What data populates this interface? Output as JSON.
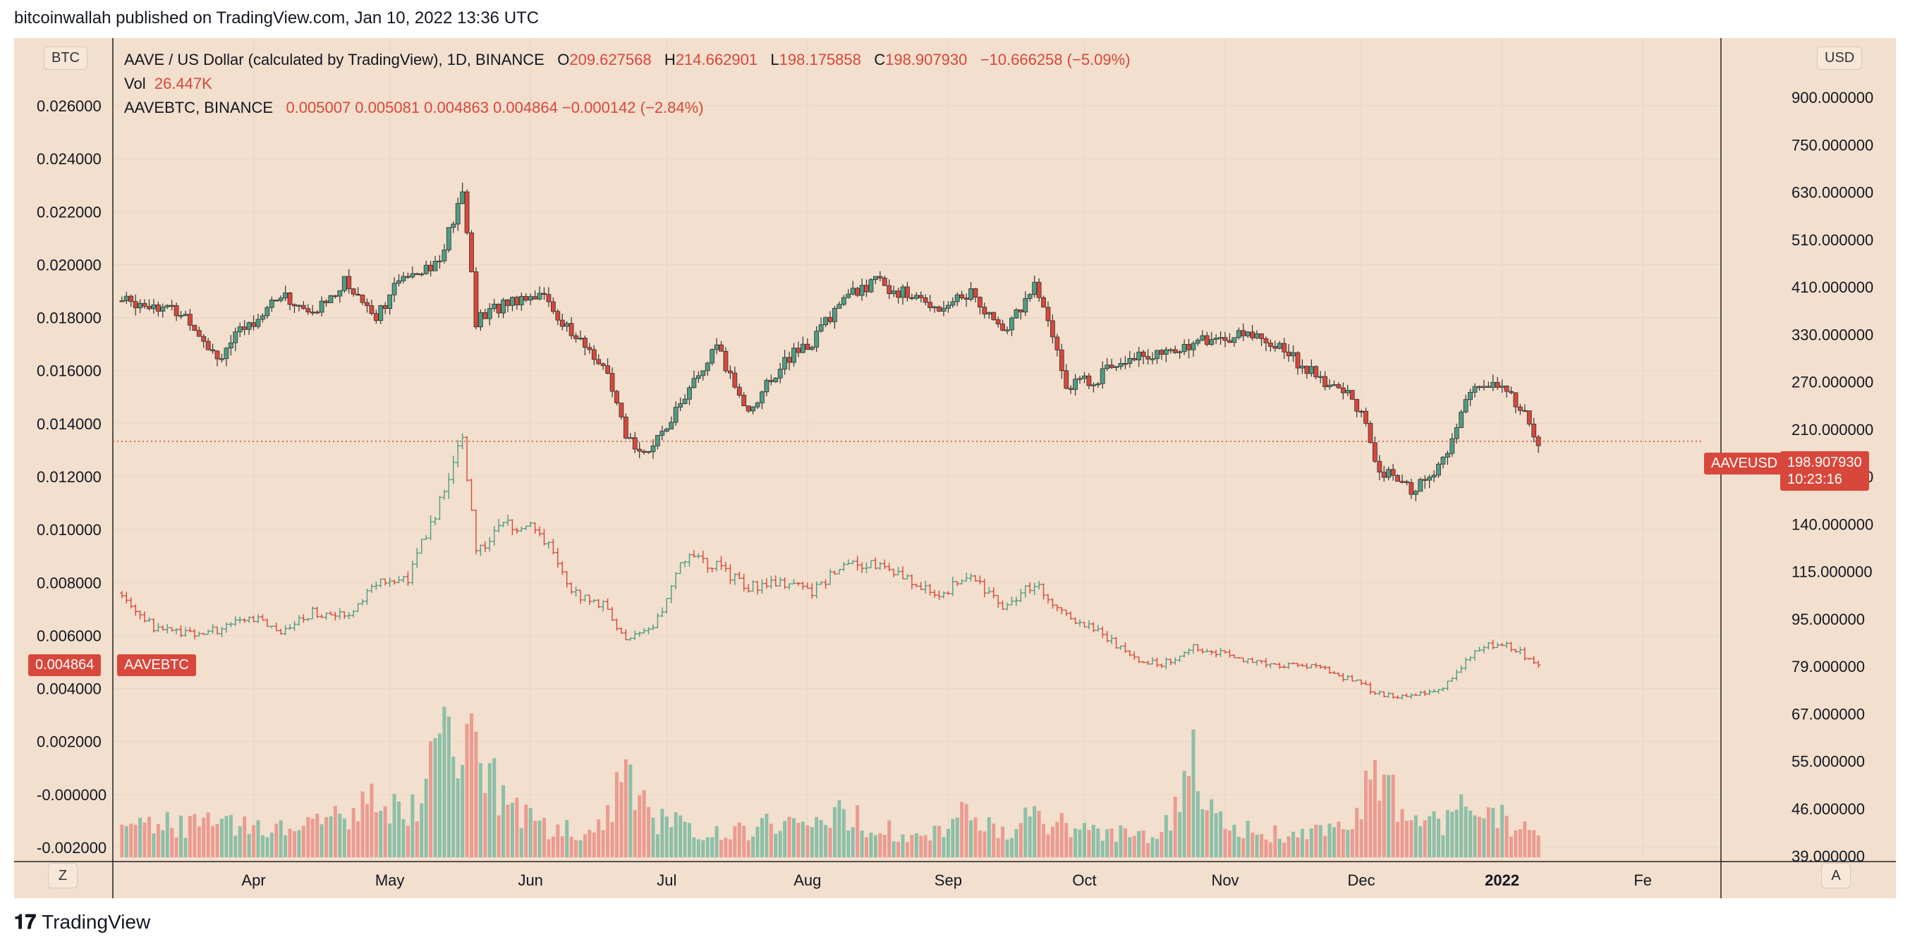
{
  "publisher_line": "bitcoinwallah published on TradingView.com, Jan 10, 2022 13:36 UTC",
  "footer_brand": "TradingView",
  "left_scale_label": "BTC",
  "right_scale_label": "USD",
  "bottom_left_button": "Z",
  "bottom_right_button": "A",
  "legend": {
    "main_symbol": "AAVE / US Dollar (calculated by TradingView), 1D, BINANCE",
    "main_ohlc": {
      "O": "209.627568",
      "H": "214.662901",
      "L": "198.175858",
      "C": "198.907930",
      "change": "−10.666258 (−5.09%)"
    },
    "vol_label": "Vol",
    "vol_value": "26.447K",
    "compare_symbol": "AAVEBTC, BINANCE",
    "compare_values": "0.005007  0.005081  0.004863  0.004864  −0.000142 (−2.84%)"
  },
  "tags": {
    "aaveusd_label": "AAVEUSD",
    "aaveusd_price": "198.907930",
    "aaveusd_countdown": "10:23:16",
    "aavebtc_price": "0.004864",
    "aavebtc_label": "AAVEBTC"
  },
  "colors": {
    "up": "#4f9c82",
    "down": "#d8473b",
    "background": "#f2dfcd",
    "vol_up": "#8dbfa8",
    "vol_down": "#eb9b90",
    "grid": "#e7d6c6"
  },
  "chart_data": {
    "type": "candlestick",
    "x_axis_labels": [
      "Apr",
      "May",
      "Jun",
      "Jul",
      "Aug",
      "Sep",
      "Oct",
      "Nov",
      "Dec",
      "2022",
      "Fe"
    ],
    "left_axis": {
      "scale": "linear",
      "unit": "BTC",
      "tick_labels": [
        "0.026000",
        "0.024000",
        "0.022000",
        "0.020000",
        "0.018000",
        "0.016000",
        "0.014000",
        "0.012000",
        "0.010000",
        "0.008000",
        "0.006000",
        "0.004000",
        "0.002000",
        "-0.000000",
        "-0.002000"
      ],
      "range": [
        -0.0025,
        0.0272
      ]
    },
    "right_axis": {
      "scale": "log",
      "unit": "USD",
      "tick_labels": [
        "900.000000",
        "750.000000",
        "630.000000",
        "510.000000",
        "410.000000",
        "330.000000",
        "270.000000",
        "210.000000",
        "170.000000",
        "140.000000",
        "115.000000",
        "95.000000",
        "79.000000",
        "67.000000",
        "55.000000",
        "46.000000",
        "39.000000"
      ],
      "range": [
        39,
        1100
      ]
    },
    "series": [
      {
        "name": "AAVEUSD",
        "kind": "candles",
        "axis": "right",
        "points": [
          {
            "date": "2021-03-03",
            "usd": 385
          },
          {
            "date": "2021-03-10",
            "usd": 380
          },
          {
            "date": "2021-03-17",
            "usd": 360
          },
          {
            "date": "2021-03-24",
            "usd": 300
          },
          {
            "date": "2021-03-31",
            "usd": 345
          },
          {
            "date": "2021-04-07",
            "usd": 395
          },
          {
            "date": "2021-04-14",
            "usd": 360
          },
          {
            "date": "2021-04-21",
            "usd": 420
          },
          {
            "date": "2021-04-28",
            "usd": 360
          },
          {
            "date": "2021-05-05",
            "usd": 440
          },
          {
            "date": "2021-05-12",
            "usd": 460
          },
          {
            "date": "2021-05-17",
            "usd": 620
          },
          {
            "date": "2021-05-20",
            "usd": 350
          },
          {
            "date": "2021-05-27",
            "usd": 385
          },
          {
            "date": "2021-06-03",
            "usd": 400
          },
          {
            "date": "2021-06-10",
            "usd": 330
          },
          {
            "date": "2021-06-17",
            "usd": 290
          },
          {
            "date": "2021-06-22",
            "usd": 200
          },
          {
            "date": "2021-06-28",
            "usd": 190
          },
          {
            "date": "2021-07-05",
            "usd": 250
          },
          {
            "date": "2021-07-12",
            "usd": 310
          },
          {
            "date": "2021-07-19",
            "usd": 230
          },
          {
            "date": "2021-07-26",
            "usd": 290
          },
          {
            "date": "2021-08-02",
            "usd": 320
          },
          {
            "date": "2021-08-09",
            "usd": 390
          },
          {
            "date": "2021-08-16",
            "usd": 420
          },
          {
            "date": "2021-08-23",
            "usd": 395
          },
          {
            "date": "2021-08-30",
            "usd": 375
          },
          {
            "date": "2021-09-06",
            "usd": 400
          },
          {
            "date": "2021-09-13",
            "usd": 330
          },
          {
            "date": "2021-09-20",
            "usd": 410
          },
          {
            "date": "2021-09-27",
            "usd": 265
          },
          {
            "date": "2021-10-04",
            "usd": 275
          },
          {
            "date": "2021-10-11",
            "usd": 305
          },
          {
            "date": "2021-10-18",
            "usd": 300
          },
          {
            "date": "2021-10-25",
            "usd": 320
          },
          {
            "date": "2021-11-01",
            "usd": 325
          },
          {
            "date": "2021-11-08",
            "usd": 330
          },
          {
            "date": "2021-11-15",
            "usd": 305
          },
          {
            "date": "2021-11-22",
            "usd": 270
          },
          {
            "date": "2021-11-29",
            "usd": 250
          },
          {
            "date": "2021-12-05",
            "usd": 175
          },
          {
            "date": "2021-12-12",
            "usd": 160
          },
          {
            "date": "2021-12-19",
            "usd": 180
          },
          {
            "date": "2021-12-26",
            "usd": 265
          },
          {
            "date": "2022-01-02",
            "usd": 260
          },
          {
            "date": "2022-01-09",
            "usd": 198.9
          }
        ]
      },
      {
        "name": "AAVEBTC",
        "kind": "bars",
        "axis": "left",
        "points": [
          {
            "date": "2021-03-03",
            "btc": 0.0076
          },
          {
            "date": "2021-03-10",
            "btc": 0.0063
          },
          {
            "date": "2021-03-17",
            "btc": 0.0061
          },
          {
            "date": "2021-03-24",
            "btc": 0.0062
          },
          {
            "date": "2021-03-31",
            "btc": 0.0068
          },
          {
            "date": "2021-04-07",
            "btc": 0.006
          },
          {
            "date": "2021-04-14",
            "btc": 0.0069
          },
          {
            "date": "2021-04-21",
            "btc": 0.0067
          },
          {
            "date": "2021-04-28",
            "btc": 0.008
          },
          {
            "date": "2021-05-05",
            "btc": 0.0082
          },
          {
            "date": "2021-05-12",
            "btc": 0.011
          },
          {
            "date": "2021-05-17",
            "btc": 0.0135
          },
          {
            "date": "2021-05-20",
            "btc": 0.0092
          },
          {
            "date": "2021-05-27",
            "btc": 0.0102
          },
          {
            "date": "2021-06-03",
            "btc": 0.01
          },
          {
            "date": "2021-06-10",
            "btc": 0.0076
          },
          {
            "date": "2021-06-17",
            "btc": 0.0072
          },
          {
            "date": "2021-06-22",
            "btc": 0.0058
          },
          {
            "date": "2021-06-28",
            "btc": 0.0062
          },
          {
            "date": "2021-07-05",
            "btc": 0.009
          },
          {
            "date": "2021-07-12",
            "btc": 0.0086
          },
          {
            "date": "2021-07-19",
            "btc": 0.0078
          },
          {
            "date": "2021-07-26",
            "btc": 0.0081
          },
          {
            "date": "2021-08-02",
            "btc": 0.0076
          },
          {
            "date": "2021-08-09",
            "btc": 0.0088
          },
          {
            "date": "2021-08-16",
            "btc": 0.0087
          },
          {
            "date": "2021-08-23",
            "btc": 0.0081
          },
          {
            "date": "2021-08-30",
            "btc": 0.0075
          },
          {
            "date": "2021-09-06",
            "btc": 0.0083
          },
          {
            "date": "2021-09-13",
            "btc": 0.0071
          },
          {
            "date": "2021-09-20",
            "btc": 0.008
          },
          {
            "date": "2021-09-27",
            "btc": 0.0068
          },
          {
            "date": "2021-10-04",
            "btc": 0.0062
          },
          {
            "date": "2021-10-11",
            "btc": 0.0052
          },
          {
            "date": "2021-10-18",
            "btc": 0.0049
          },
          {
            "date": "2021-10-25",
            "btc": 0.0056
          },
          {
            "date": "2021-11-01",
            "btc": 0.0053
          },
          {
            "date": "2021-11-08",
            "btc": 0.005
          },
          {
            "date": "2021-11-15",
            "btc": 0.0049
          },
          {
            "date": "2021-11-22",
            "btc": 0.0048
          },
          {
            "date": "2021-11-29",
            "btc": 0.0043
          },
          {
            "date": "2021-12-05",
            "btc": 0.0038
          },
          {
            "date": "2021-12-12",
            "btc": 0.0037
          },
          {
            "date": "2021-12-19",
            "btc": 0.004
          },
          {
            "date": "2021-12-26",
            "btc": 0.0055
          },
          {
            "date": "2022-01-02",
            "btc": 0.0057
          },
          {
            "date": "2022-01-09",
            "btc": 0.004864
          }
        ]
      },
      {
        "name": "Vol",
        "kind": "volume",
        "points": [
          {
            "date": "2021-03-03",
            "rel": 0.25
          },
          {
            "date": "2021-03-10",
            "rel": 0.18
          },
          {
            "date": "2021-03-17",
            "rel": 0.16
          },
          {
            "date": "2021-03-24",
            "rel": 0.2
          },
          {
            "date": "2021-03-31",
            "rel": 0.14
          },
          {
            "date": "2021-04-07",
            "rel": 0.17
          },
          {
            "date": "2021-04-14",
            "rel": 0.15
          },
          {
            "date": "2021-04-21",
            "rel": 0.22
          },
          {
            "date": "2021-04-28",
            "rel": 0.3
          },
          {
            "date": "2021-05-05",
            "rel": 0.2
          },
          {
            "date": "2021-05-12",
            "rel": 0.55
          },
          {
            "date": "2021-05-17",
            "rel": 0.65
          },
          {
            "date": "2021-05-19",
            "rel": 1.0
          },
          {
            "date": "2021-05-20",
            "rel": 0.5
          },
          {
            "date": "2021-05-27",
            "rel": 0.26
          },
          {
            "date": "2021-06-03",
            "rel": 0.15
          },
          {
            "date": "2021-06-10",
            "rel": 0.14
          },
          {
            "date": "2021-06-17",
            "rel": 0.14
          },
          {
            "date": "2021-06-22",
            "rel": 0.45
          },
          {
            "date": "2021-06-28",
            "rel": 0.2
          },
          {
            "date": "2021-07-05",
            "rel": 0.15
          },
          {
            "date": "2021-07-12",
            "rel": 0.12
          },
          {
            "date": "2021-07-19",
            "rel": 0.14
          },
          {
            "date": "2021-07-26",
            "rel": 0.18
          },
          {
            "date": "2021-08-02",
            "rel": 0.14
          },
          {
            "date": "2021-08-09",
            "rel": 0.22
          },
          {
            "date": "2021-08-16",
            "rel": 0.15
          },
          {
            "date": "2021-08-23",
            "rel": 0.12
          },
          {
            "date": "2021-08-30",
            "rel": 0.13
          },
          {
            "date": "2021-09-06",
            "rel": 0.25
          },
          {
            "date": "2021-09-13",
            "rel": 0.14
          },
          {
            "date": "2021-09-20",
            "rel": 0.2
          },
          {
            "date": "2021-09-27",
            "rel": 0.16
          },
          {
            "date": "2021-10-04",
            "rel": 0.12
          },
          {
            "date": "2021-10-11",
            "rel": 0.12
          },
          {
            "date": "2021-10-18",
            "rel": 0.1
          },
          {
            "date": "2021-10-25",
            "rel": 0.5
          },
          {
            "date": "2021-11-01",
            "rel": 0.14
          },
          {
            "date": "2021-11-08",
            "rel": 0.13
          },
          {
            "date": "2021-11-15",
            "rel": 0.12
          },
          {
            "date": "2021-11-22",
            "rel": 0.12
          },
          {
            "date": "2021-11-29",
            "rel": 0.14
          },
          {
            "date": "2021-12-04",
            "rel": 0.45
          },
          {
            "date": "2021-12-12",
            "rel": 0.15
          },
          {
            "date": "2021-12-19",
            "rel": 0.18
          },
          {
            "date": "2021-12-26",
            "rel": 0.3
          },
          {
            "date": "2022-01-02",
            "rel": 0.18
          },
          {
            "date": "2022-01-09",
            "rel": 0.12
          }
        ]
      }
    ],
    "last_price_line": {
      "usd": 198.90793
    },
    "grid": true,
    "legend_position": "top-left"
  }
}
